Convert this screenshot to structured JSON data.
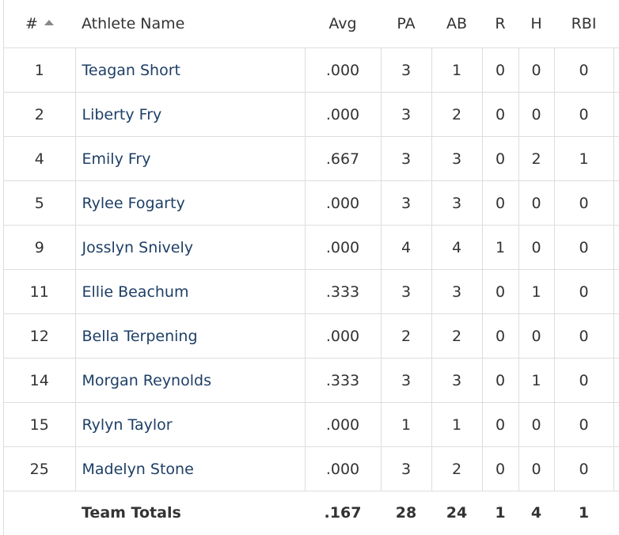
{
  "table": {
    "header": [
      "#",
      "Athlete Name",
      "Avg",
      "PA",
      "AB",
      "R",
      "H",
      "RBI"
    ],
    "rows": [
      [
        "1",
        "Teagan Short",
        ".000",
        "3",
        "1",
        "0",
        "0",
        "0"
      ],
      [
        "2",
        "Liberty Fry",
        ".000",
        "3",
        "2",
        "0",
        "0",
        "0"
      ],
      [
        "4",
        "Emily Fry",
        ".667",
        "3",
        "3",
        "0",
        "2",
        "1"
      ],
      [
        "5",
        "Rylee Fogarty",
        ".000",
        "3",
        "3",
        "0",
        "0",
        "0"
      ],
      [
        "9",
        "Josslyn Snively",
        ".000",
        "4",
        "4",
        "1",
        "0",
        "0"
      ],
      [
        "11",
        "Ellie Beachum",
        ".333",
        "3",
        "3",
        "0",
        "1",
        "0"
      ],
      [
        "12",
        "Bella Terpening",
        ".000",
        "2",
        "2",
        "0",
        "0",
        "0"
      ],
      [
        "14",
        "Morgan Reynolds",
        ".333",
        "3",
        "3",
        "0",
        "1",
        "0"
      ],
      [
        "15",
        "Rylyn Taylor",
        ".000",
        "1",
        "1",
        "0",
        "0",
        "0"
      ],
      [
        "25",
        "Madelyn Stone",
        ".000",
        "3",
        "2",
        "0",
        "0",
        "0"
      ]
    ],
    "totals": [
      "Team Totals",
      ".167",
      "28",
      "24",
      "1",
      "4",
      "1"
    ]
  }
}
